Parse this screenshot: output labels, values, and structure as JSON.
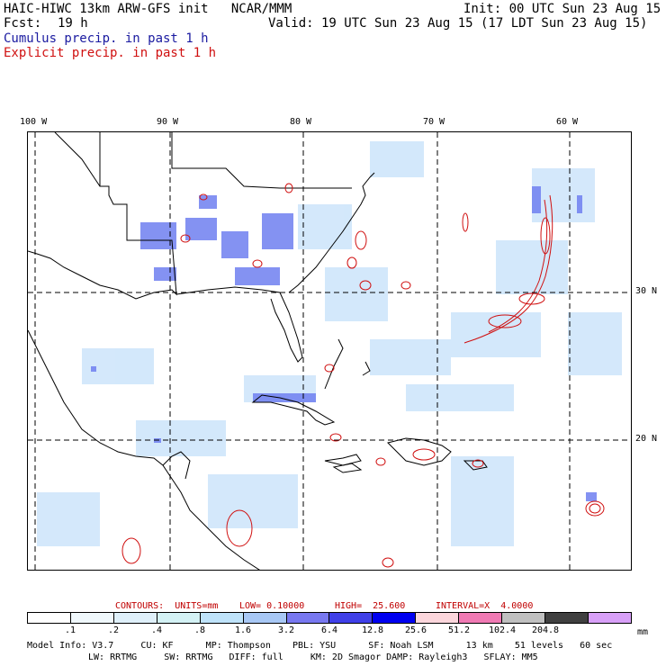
{
  "header": {
    "title": "HAIC-HIWC 13km ARW-GFS init   NCAR/MMM",
    "init": "Init: 00 UTC Sun 23 Aug 15",
    "fcst_label": "Fcst:",
    "fcst_value": "19 h",
    "valid": "Valid: 19 UTC Sun 23 Aug 15 (17 LDT Sun 23 Aug 15)",
    "legend_cumulus": "Cumulus precip. in past 1 h",
    "legend_explicit": "Explicit precip. in past 1 h",
    "legend_cumulus_color": "#1a1aa0",
    "legend_explicit_color": "#d01010"
  },
  "map": {
    "lon_labels": [
      "100 W",
      "90 W",
      "80 W",
      "70 W",
      "60 W"
    ],
    "lat_labels": [
      "30 N",
      "20 N"
    ],
    "contour_color": "#d01010",
    "coast_color": "#000000"
  },
  "contours": {
    "units_label": "CONTOURS:  UNITS=mm",
    "low": "LOW= 0.10000",
    "high": "HIGH=  25.600",
    "interval": "INTERVAL=X  4.0000",
    "color": "#c00000"
  },
  "colorbar": {
    "unit": "mm",
    "labels": [
      ".1",
      ".2",
      ".4",
      ".8",
      "1.6",
      "3.2",
      "6.4",
      "12.8",
      "25.6",
      "51.2",
      "102.4",
      "204.8"
    ],
    "colors": [
      "#ffffff",
      "#f0f8fc",
      "#dff0fa",
      "#d4f2f5",
      "#bfe3fa",
      "#a8c8f5",
      "#7878f0",
      "#4040e8",
      "#0000f0",
      "#fcd6dc",
      "#f07ab4",
      "#c0c0c0",
      "#404040",
      "#d8a0f8"
    ]
  },
  "model_info": {
    "line1": "Model Info: V3.7     CU: KF      MP: Thompson    PBL: YSU      SF: Noah LSM      13 km    51 levels   60 sec",
    "line2": "LW: RRTMG     SW: RRTMG   DIFF: full     KM: 2D Smagor DAMP: Rayleigh3   SFLAY: MM5"
  }
}
